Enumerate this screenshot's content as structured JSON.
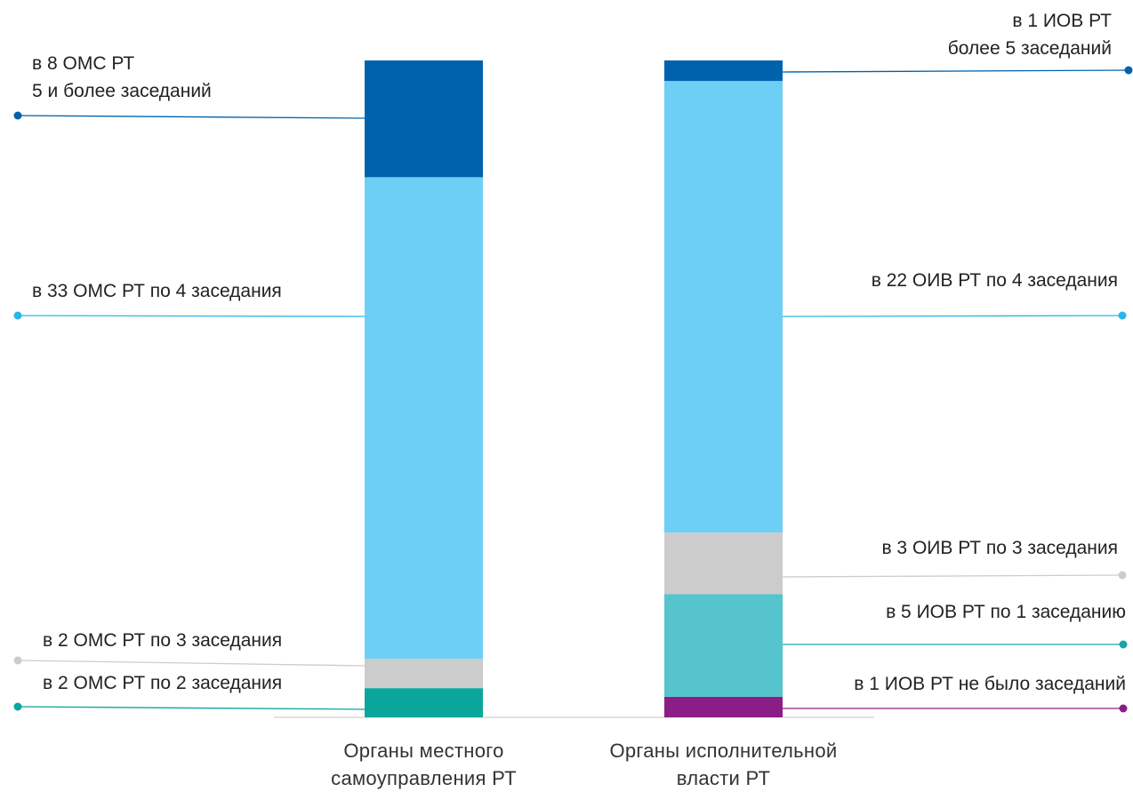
{
  "chart_data": {
    "type": "bar",
    "stacked": true,
    "categories": [
      "Органы местного самоуправления РТ",
      "Органы исполнительной власти РТ"
    ],
    "category_label_lines": [
      [
        "Органы местного",
        "самоуправления РТ"
      ],
      [
        "Органы исполнительной",
        "власти РТ"
      ]
    ],
    "stacks": [
      {
        "category": "Органы местного самоуправления РТ",
        "segments": [
          {
            "key": "l_s2",
            "value": 2,
            "color": "#0aa69b",
            "label_lines": [
              "в 2 ОМС РТ по 2 заседания"
            ],
            "dot_color": "#0aa69b"
          },
          {
            "key": "l_s3",
            "value": 2,
            "color": "#cccccc",
            "label_lines": [
              "в 2 ОМС РТ по 3 заседания"
            ],
            "dot_color": "#cccccc"
          },
          {
            "key": "l_s4",
            "value": 33,
            "color": "#6dcff6",
            "label_lines": [
              "в 33 ОМС РТ по 4 заседания"
            ],
            "dot_color": "#29b6e8"
          },
          {
            "key": "l_s5",
            "value": 8,
            "color": "#0062ad",
            "label_lines": [
              "в 8 ОМС РТ",
              "5 и более заседаний"
            ],
            "dot_color": "#0062ad"
          }
        ]
      },
      {
        "category": "Органы исполнительной власти РТ",
        "segments": [
          {
            "key": "r_s0",
            "value": 1,
            "color": "#8b1d86",
            "label_lines": [
              "в 1 ИОВ РТ не было заседаний"
            ],
            "dot_color": "#8b1d86"
          },
          {
            "key": "r_s1",
            "value": 5,
            "color": "#55c4cc",
            "label_lines": [
              "в 5 ИОВ РТ по 1 заседанию"
            ],
            "dot_color": "#14a8a8"
          },
          {
            "key": "r_s3",
            "value": 3,
            "color": "#cccccc",
            "label_lines": [
              "в 3 ОИВ РТ по 3 заседания"
            ],
            "dot_color": "#cccccc"
          },
          {
            "key": "r_s4",
            "value": 22,
            "color": "#6dcff6",
            "label_lines": [
              "в 22 ОИВ РТ по 4 заседания"
            ],
            "dot_color": "#29b6e8"
          },
          {
            "key": "r_s5",
            "value": 1,
            "color": "#0062ad",
            "label_lines": [
              "в 1 ИОВ РТ",
              "более 5 заседаний"
            ],
            "dot_color": "#0062ad"
          }
        ]
      }
    ],
    "scale": "100% stacked",
    "grid": false,
    "legend": "none"
  }
}
